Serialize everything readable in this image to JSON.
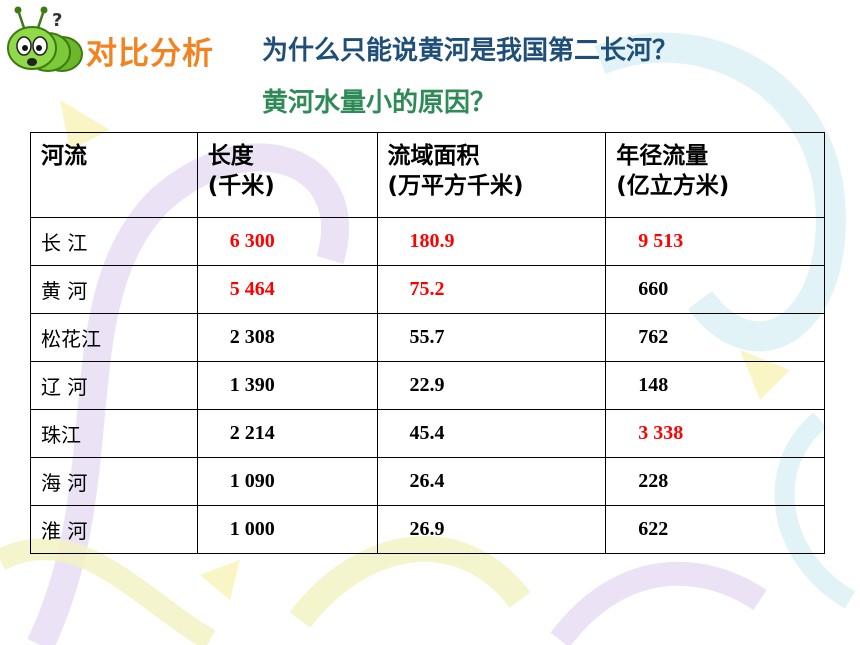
{
  "heading": "对比分析",
  "question": "为什么只能说黄河是我国第二长河？",
  "subquestion": "黄河水量小的原因？",
  "colors": {
    "heading": "#f58220",
    "question": "#1f4e79",
    "subquestion": "#2e8b57",
    "highlight": "#ff0000"
  },
  "mascot_icon": "green-caterpillar-icon",
  "table": {
    "headers": [
      {
        "line1": "河流",
        "line2": ""
      },
      {
        "line1": "长度",
        "line2": "(千米)"
      },
      {
        "line1": "流域面积",
        "line2": "(万平方千米)"
      },
      {
        "line1": "年径流量",
        "line2": "(亿立方米)"
      }
    ],
    "rows": [
      {
        "name": "长 江",
        "length": "6 300",
        "area": "180.9",
        "flow": "9 513"
      },
      {
        "name": "黄 河",
        "length": "5 464",
        "area": "75.2",
        "flow": "660"
      },
      {
        "name": "松花江",
        "length": "2 308",
        "area": "55.7",
        "flow": "762"
      },
      {
        "name": "辽 河",
        "length": "1 390",
        "area": "22.9",
        "flow": "148"
      },
      {
        "name": "珠江",
        "length": "2 214",
        "area": "45.4",
        "flow": "3 338"
      },
      {
        "name": "海 河",
        "length": "1 090",
        "area": "26.4",
        "flow": "228"
      },
      {
        "name": "淮 河",
        "length": "1 000",
        "area": "26.9",
        "flow": "622"
      }
    ]
  }
}
